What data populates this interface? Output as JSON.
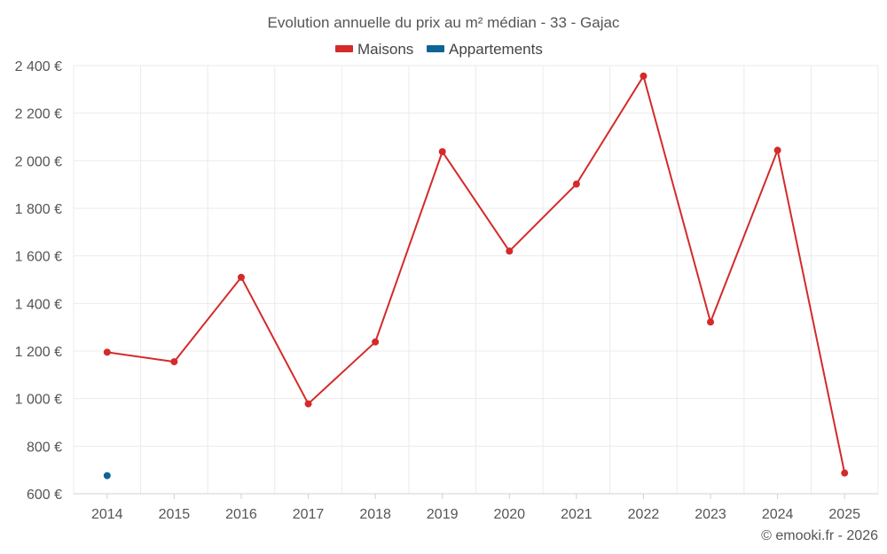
{
  "chart_data": {
    "type": "line",
    "title": "Evolution annuelle du prix au m² médian - 33 - Gajac",
    "categories": [
      "2014",
      "2015",
      "2016",
      "2017",
      "2018",
      "2019",
      "2020",
      "2021",
      "2022",
      "2023",
      "2024",
      "2025"
    ],
    "series": [
      {
        "name": "Maisons",
        "color": "#d42a2a",
        "values": [
          1195,
          1155,
          1510,
          978,
          1238,
          2038,
          1620,
          1902,
          2356,
          1322,
          2044,
          687
        ]
      },
      {
        "name": "Appartements",
        "color": "#0e6497",
        "values": [
          676,
          null,
          null,
          null,
          null,
          null,
          null,
          null,
          null,
          null,
          null,
          null
        ]
      }
    ],
    "ylim": [
      600,
      2400
    ],
    "yticks": [
      600,
      800,
      1000,
      1200,
      1400,
      1600,
      1800,
      2000,
      2200,
      2400
    ],
    "ytick_labels": [
      "600 €",
      "800 €",
      "1 000 €",
      "1 200 €",
      "1 400 €",
      "1 600 €",
      "1 800 €",
      "2 000 €",
      "2 200 €",
      "2 400 €"
    ],
    "xlabel": "",
    "ylabel": "",
    "grid": true,
    "legend_position": "top-center",
    "credit": "© emooki.fr - 2026"
  }
}
